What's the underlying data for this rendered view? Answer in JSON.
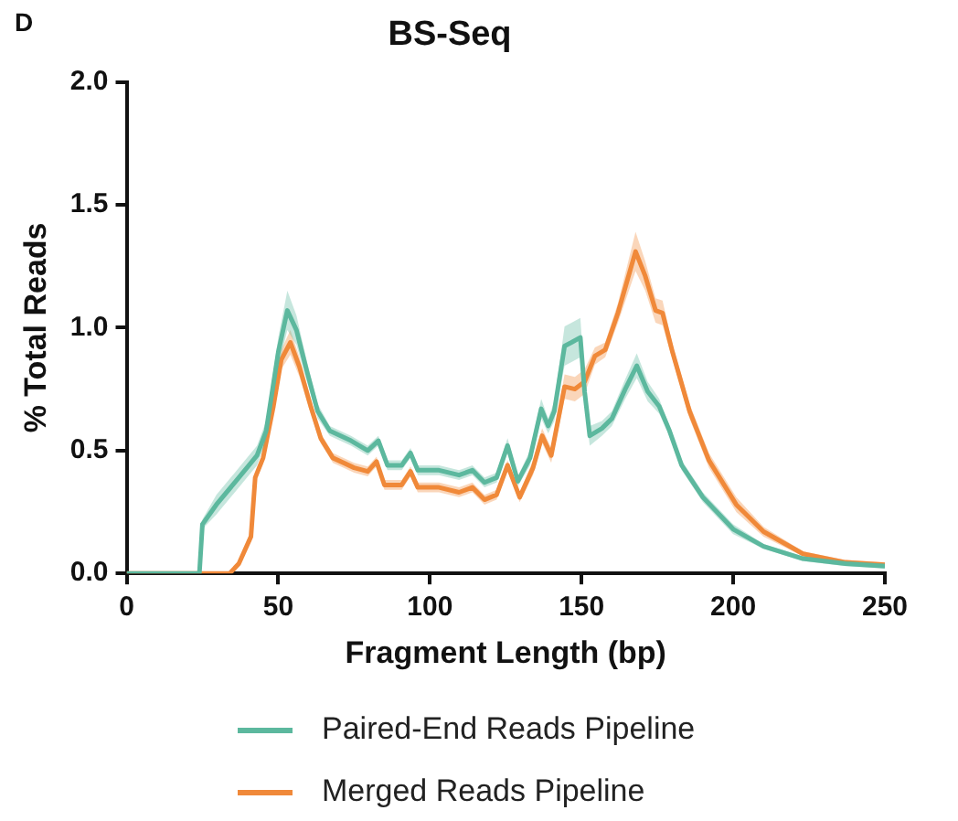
{
  "chart_data": {
    "type": "line",
    "title": "BS-Seq",
    "xlabel": "Fragment Length (bp)",
    "ylabel": "% Total Reads",
    "annotations": [
      "D"
    ],
    "xlim": [
      0,
      250
    ],
    "xticks": [
      0,
      50,
      100,
      150,
      200,
      250
    ],
    "ylim": [
      0,
      2
    ],
    "yticks": [
      {
        "value": 0,
        "label": "0.0"
      },
      {
        "value": 0.5,
        "label": "0.5"
      },
      {
        "value": 1,
        "label": "1.0"
      },
      {
        "value": 1.5,
        "label": "1.5"
      },
      {
        "value": 2,
        "label": "2.0"
      }
    ],
    "grid": false,
    "legend": "bottom",
    "marker": "none",
    "line_style": "solid",
    "series": [
      {
        "name": "Paired-End Reads Pipeline",
        "color": "#5cb89e",
        "x": [
          0,
          24,
          25,
          29.6,
          36,
          43,
          46,
          50,
          53,
          56,
          59.5,
          63,
          67,
          74,
          79.5,
          83,
          86,
          90.7,
          93.6,
          96,
          103,
          109.6,
          114,
          118,
          122,
          125.6,
          129,
          133,
          136.7,
          139,
          141,
          144.4,
          146.7,
          149.6,
          151,
          152.7,
          156.7,
          160,
          164.4,
          168.2,
          171.8,
          175.6,
          179,
          183,
          190,
          200,
          210,
          223,
          237,
          250
        ],
        "values": [
          0,
          0,
          0.2,
          0.28,
          0.375,
          0.48,
          0.58,
          0.9,
          1.07,
          0.99,
          0.82,
          0.66,
          0.58,
          0.54,
          0.5,
          0.54,
          0.44,
          0.44,
          0.49,
          0.42,
          0.42,
          0.4,
          0.42,
          0.37,
          0.39,
          0.52,
          0.375,
          0.47,
          0.67,
          0.6,
          0.66,
          0.925,
          0.94,
          0.96,
          0.74,
          0.56,
          0.59,
          0.63,
          0.75,
          0.845,
          0.74,
          0.68,
          0.58,
          0.44,
          0.31,
          0.18,
          0.11,
          0.06,
          0.04,
          0.03
        ],
        "lower": [
          0,
          0,
          0.18,
          0.24,
          0.335,
          0.44,
          0.54,
          0.84,
          0.99,
          0.93,
          0.78,
          0.63,
          0.56,
          0.52,
          0.48,
          0.52,
          0.42,
          0.42,
          0.47,
          0.4,
          0.4,
          0.38,
          0.4,
          0.35,
          0.37,
          0.49,
          0.355,
          0.44,
          0.63,
          0.57,
          0.62,
          0.845,
          0.86,
          0.88,
          0.69,
          0.52,
          0.56,
          0.6,
          0.71,
          0.795,
          0.7,
          0.65,
          0.56,
          0.42,
          0.29,
          0.16,
          0.1,
          0.05,
          0.03,
          0.02
        ],
        "upper": [
          0,
          0,
          0.22,
          0.32,
          0.415,
          0.52,
          0.62,
          0.96,
          1.15,
          1.05,
          0.86,
          0.69,
          0.6,
          0.56,
          0.52,
          0.56,
          0.46,
          0.46,
          0.51,
          0.44,
          0.44,
          0.42,
          0.44,
          0.39,
          0.41,
          0.55,
          0.395,
          0.5,
          0.71,
          0.63,
          0.7,
          1.005,
          1.02,
          1.04,
          0.79,
          0.6,
          0.62,
          0.66,
          0.79,
          0.895,
          0.78,
          0.71,
          0.6,
          0.46,
          0.33,
          0.2,
          0.12,
          0.07,
          0.05,
          0.04
        ]
      },
      {
        "name": "Merged Reads Pipeline",
        "color": "#f0893a",
        "x": [
          0,
          34,
          37,
          41,
          42.4,
          45,
          48.4,
          51,
          54,
          57,
          60.7,
          64,
          68,
          75,
          79.5,
          82.4,
          85,
          90.7,
          93.6,
          96,
          103,
          109.6,
          114,
          118,
          122,
          125.6,
          129.6,
          134,
          137,
          140,
          144.4,
          147.8,
          151,
          154.4,
          157.8,
          162,
          167.8,
          171,
          174.4,
          176.7,
          180,
          185.6,
          192,
          201,
          210,
          223,
          237,
          250
        ],
        "values": [
          0,
          0,
          0.04,
          0.15,
          0.39,
          0.47,
          0.68,
          0.87,
          0.94,
          0.84,
          0.68,
          0.55,
          0.47,
          0.43,
          0.415,
          0.455,
          0.36,
          0.36,
          0.415,
          0.35,
          0.35,
          0.33,
          0.35,
          0.3,
          0.32,
          0.44,
          0.31,
          0.43,
          0.56,
          0.48,
          0.76,
          0.75,
          0.78,
          0.885,
          0.91,
          1.06,
          1.31,
          1.21,
          1.07,
          1.06,
          0.9,
          0.66,
          0.46,
          0.28,
          0.17,
          0.08,
          0.045,
          0.035
        ],
        "lower": [
          0,
          0,
          0.03,
          0.13,
          0.37,
          0.45,
          0.65,
          0.83,
          0.89,
          0.8,
          0.65,
          0.53,
          0.45,
          0.41,
          0.395,
          0.435,
          0.34,
          0.34,
          0.395,
          0.33,
          0.33,
          0.31,
          0.33,
          0.28,
          0.3,
          0.42,
          0.29,
          0.4,
          0.53,
          0.45,
          0.71,
          0.7,
          0.73,
          0.85,
          0.88,
          1.02,
          1.23,
          1.15,
          1.02,
          1.01,
          0.87,
          0.63,
          0.43,
          0.25,
          0.15,
          0.07,
          0.035,
          0.025
        ],
        "upper": [
          0,
          0,
          0.05,
          0.17,
          0.41,
          0.49,
          0.71,
          0.91,
          0.99,
          0.88,
          0.71,
          0.57,
          0.49,
          0.45,
          0.435,
          0.475,
          0.38,
          0.38,
          0.435,
          0.37,
          0.37,
          0.35,
          0.37,
          0.32,
          0.34,
          0.46,
          0.33,
          0.46,
          0.59,
          0.51,
          0.81,
          0.8,
          0.83,
          0.92,
          0.94,
          1.1,
          1.39,
          1.27,
          1.12,
          1.11,
          0.93,
          0.69,
          0.49,
          0.31,
          0.19,
          0.09,
          0.055,
          0.045
        ]
      }
    ]
  }
}
